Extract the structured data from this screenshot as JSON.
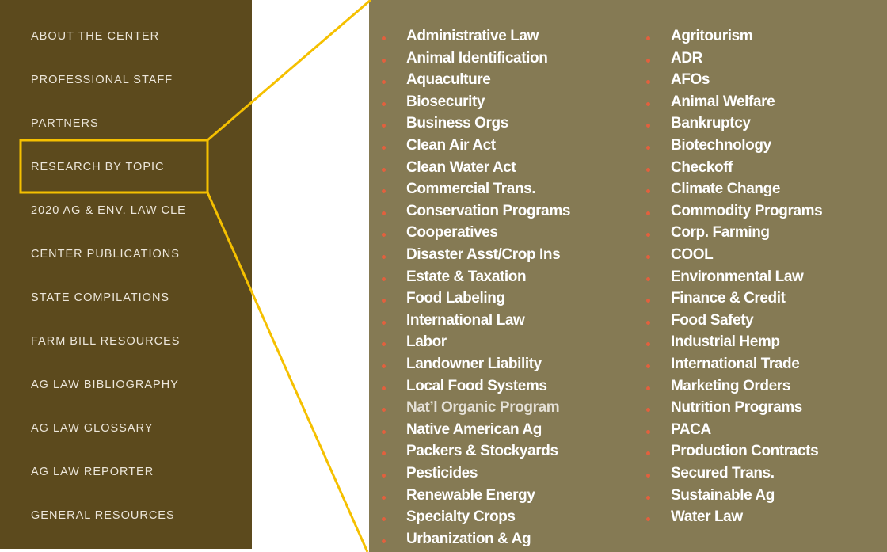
{
  "menu": [
    "ABOUT THE CENTER",
    "PROFESSIONAL STAFF",
    "PARTNERS",
    "RESEARCH BY TOPIC",
    "2020 AG & ENV. LAW CLE",
    "CENTER PUBLICATIONS",
    "STATE COMPILATIONS",
    "FARM BILL RESOURCES",
    "AG LAW BIBLIOGRAPHY",
    "AG LAW GLOSSARY",
    "AG LAW REPORTER",
    "GENERAL RESOURCES"
  ],
  "topics": {
    "column1": [
      "Administrative Law",
      "Animal Identification",
      "Aquaculture",
      "Biosecurity",
      "Business Orgs",
      "Clean Air Act",
      "Clean Water Act",
      "Commercial Trans.",
      "Conservation Programs",
      "Cooperatives",
      "Disaster Asst/Crop Ins",
      "Estate & Taxation",
      "Food Labeling",
      "International Law",
      "Labor",
      "Landowner Liability",
      "Local Food Systems",
      "Nat’l Organic Program",
      "Native American Ag",
      "Packers & Stockyards",
      "Pesticides",
      "Renewable Energy",
      "Specialty Crops",
      "Urbanization & Ag"
    ],
    "column2": [
      "Agritourism",
      "ADR",
      "AFOs",
      "Animal Welfare",
      "Bankruptcy",
      "Biotechnology",
      "Checkoff",
      "Climate Change",
      "Commodity Programs",
      "Corp. Farming",
      "COOL",
      "Environmental Law",
      "Finance & Credit",
      "Food Safety",
      "Industrial Hemp",
      "International Trade",
      "Marketing Orders",
      "Nutrition Programs",
      "PACA",
      "Production Contracts",
      "Secured Trans.",
      "Sustainable Ag",
      "Water Law"
    ]
  }
}
